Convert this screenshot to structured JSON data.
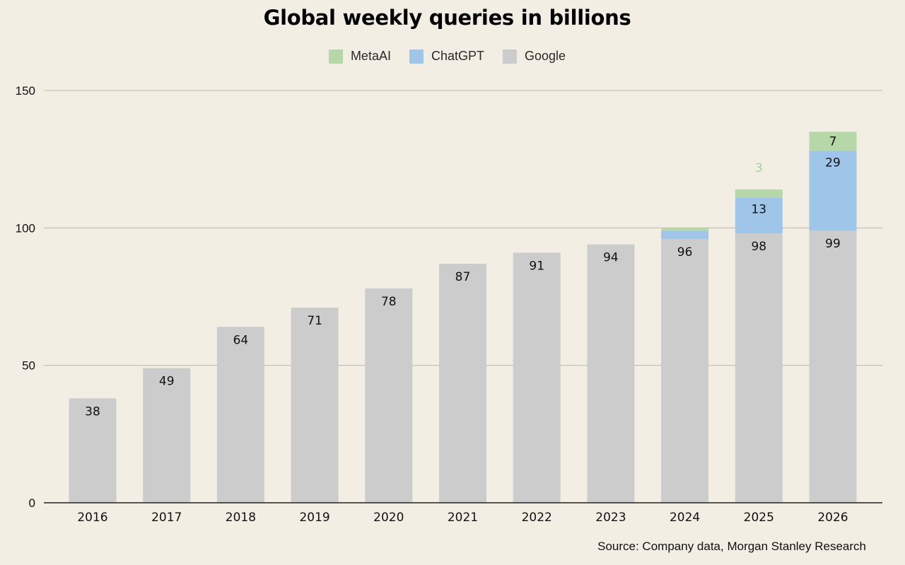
{
  "chart_data": {
    "type": "bar",
    "stacked": true,
    "title": "Global weekly queries in billions",
    "source": "Source: Company data, Morgan Stanley Research",
    "categories": [
      "2016",
      "2017",
      "2018",
      "2019",
      "2020",
      "2021",
      "2022",
      "2023",
      "2024",
      "2025",
      "2026"
    ],
    "series": [
      {
        "name": "Google",
        "color": "#cccccc",
        "values": [
          38,
          49,
          64,
          71,
          78,
          87,
          91,
          94,
          96,
          98,
          99
        ],
        "labels": [
          "38",
          "49",
          "64",
          "71",
          "78",
          "87",
          "91",
          "94",
          "96",
          "98",
          "99"
        ]
      },
      {
        "name": "ChatGPT",
        "color": "#9fc5e8",
        "values": [
          0,
          0,
          0,
          0,
          0,
          0,
          0,
          0,
          3,
          13,
          29
        ],
        "labels": [
          "",
          "",
          "",
          "",
          "",
          "",
          "",
          "",
          "",
          "13",
          "29"
        ]
      },
      {
        "name": "MetaAI",
        "color": "#b6d7a8",
        "values": [
          0,
          0,
          0,
          0,
          0,
          0,
          0,
          0,
          1,
          3,
          7
        ],
        "labels": [
          "",
          "",
          "",
          "",
          "",
          "",
          "",
          "",
          "",
          "3",
          "7"
        ]
      }
    ],
    "legend_order": [
      "MetaAI",
      "ChatGPT",
      "Google"
    ],
    "legend_position": "top",
    "ylim": [
      0,
      150
    ],
    "yticks": [
      0,
      50,
      100,
      150
    ],
    "grid": true
  },
  "legend": {
    "metaai": "MetaAI",
    "chatgpt": "ChatGPT",
    "google": "Google"
  }
}
